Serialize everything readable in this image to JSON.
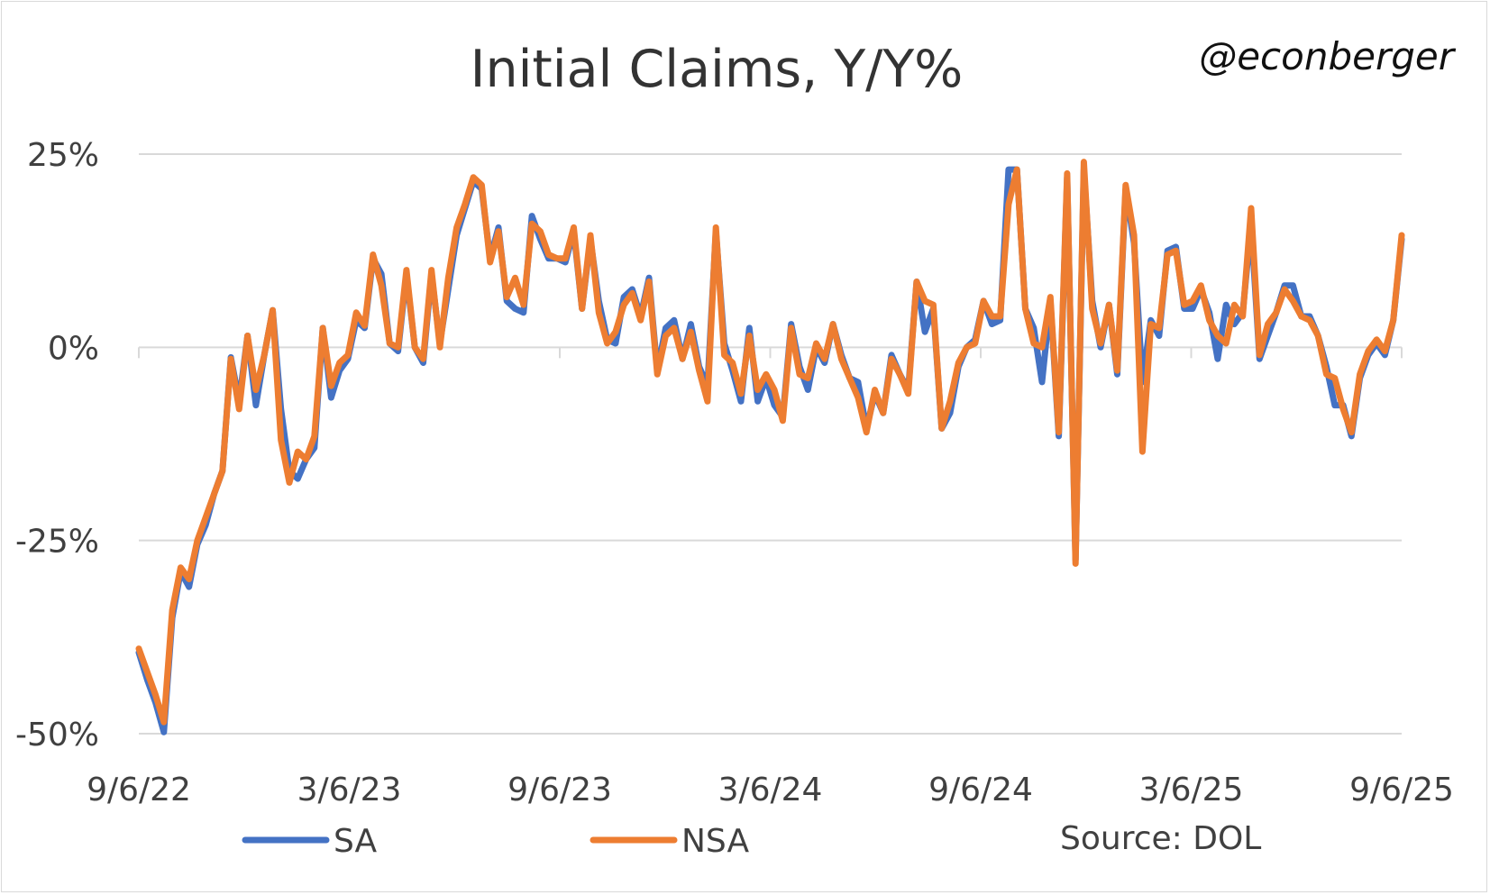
{
  "chart_data": {
    "type": "line",
    "title": "Initial Claims, Y/Y%",
    "watermark": "@econberger",
    "source": "Source: DOL",
    "x_tick_labels": [
      "9/6/22",
      "3/6/23",
      "9/6/23",
      "3/6/24",
      "9/6/24",
      "3/6/25",
      "9/6/25"
    ],
    "x_range": [
      "2022-09-06",
      "2025-09-06"
    ],
    "y_tick_labels": [
      "25%",
      "0%",
      "-25%",
      "-50%"
    ],
    "y_ticks": [
      25,
      0,
      -25,
      -50
    ],
    "ylim": [
      -50,
      25
    ],
    "grid": true,
    "legend_position": "bottom",
    "series": [
      {
        "name": "SA",
        "color": "#4472c4",
        "values": [
          -39.5,
          -43,
          -46,
          -49.8,
          -35,
          -29,
          -31,
          -25.5,
          -23,
          -19,
          -16,
          -1.3,
          -7,
          1.5,
          -7.5,
          -1,
          4.8,
          -8,
          -16,
          -17,
          -14.5,
          -13,
          2.5,
          -6.5,
          -3,
          -1.5,
          3.5,
          2.5,
          11.5,
          9.5,
          0.5,
          -0.5,
          9.5,
          0,
          -2,
          9.5,
          0.5,
          7.5,
          14.5,
          18,
          21.5,
          20.5,
          11.5,
          15.5,
          6,
          5,
          4.5,
          17,
          14,
          11.5,
          11.5,
          11,
          15,
          5,
          14,
          6,
          1,
          0.5,
          6.5,
          7.5,
          4,
          9,
          -3,
          2.5,
          3.5,
          -1.5,
          3,
          -2.5,
          -5,
          15,
          0.5,
          -3,
          -7,
          2.5,
          -7,
          -4,
          -7.5,
          -9,
          3,
          -2.5,
          -5.5,
          0,
          -2,
          3,
          -1,
          -4,
          -4.5,
          -10.5,
          -6,
          -8.5,
          -1,
          -3.5,
          -5.5,
          8.5,
          2,
          5,
          -10.5,
          -8.5,
          -2.5,
          0,
          1,
          6,
          3,
          3.5,
          23,
          23,
          5,
          2.5,
          -4.5,
          6,
          -11.5,
          22,
          -27.5,
          23,
          6,
          0,
          5.5,
          -3.5,
          20.5,
          13.5,
          -4.5,
          3.5,
          1.5,
          12.5,
          13,
          5,
          5,
          7.5,
          4.5,
          -1.5,
          5.5,
          3,
          4.5,
          16,
          -1.5,
          1.5,
          4.5,
          8,
          8,
          4,
          4,
          1.5,
          -2.5,
          -7.5,
          -7.5,
          -11.5,
          -4,
          -1,
          0.5,
          -1,
          3.5,
          14
        ]
      },
      {
        "name": "NSA",
        "color": "#ed7d31",
        "values": [
          -39,
          -42,
          -45,
          -48.5,
          -34,
          -28.5,
          -30,
          -25,
          -22,
          -19,
          -16,
          -1.5,
          -8,
          1.5,
          -5.5,
          -1,
          4.8,
          -12,
          -17.5,
          -13.5,
          -14.5,
          -11.5,
          2.5,
          -5,
          -2,
          -1,
          4.5,
          2.8,
          12,
          8,
          0.5,
          0,
          10,
          0,
          -1.5,
          10,
          0,
          9,
          15.5,
          18.5,
          22,
          21,
          11,
          15,
          6.5,
          9,
          5.5,
          16,
          15,
          12,
          11.5,
          11.5,
          15.5,
          5,
          14.5,
          4.5,
          0.5,
          2,
          5.5,
          7,
          3.5,
          8.5,
          -3.5,
          1.5,
          2.5,
          -1.5,
          2,
          -3,
          -7,
          15.5,
          -1,
          -2,
          -6,
          1.5,
          -5.5,
          -3.5,
          -5.5,
          -9.5,
          2.5,
          -3.5,
          -4,
          0.5,
          -1.5,
          3,
          -1.5,
          -4,
          -6.5,
          -11,
          -5.5,
          -8.5,
          -1.5,
          -3.5,
          -6,
          8.5,
          6,
          5.5,
          -10.5,
          -7,
          -2,
          0,
          0.5,
          6,
          4,
          4,
          18.5,
          23,
          5,
          0.5,
          0,
          6.5,
          -11,
          22.5,
          -28,
          24,
          5,
          0.5,
          5.5,
          -3,
          21,
          14.5,
          -13.5,
          3,
          2.5,
          12,
          12.5,
          5.5,
          6,
          8,
          3.5,
          1.5,
          0.5,
          5.5,
          4,
          18,
          -1,
          3,
          4.5,
          7.5,
          6,
          4,
          3.5,
          1.5,
          -3.5,
          -4,
          -8,
          -11,
          -3.5,
          -0.5,
          1,
          -0.5,
          3.5,
          14.5
        ]
      }
    ]
  }
}
